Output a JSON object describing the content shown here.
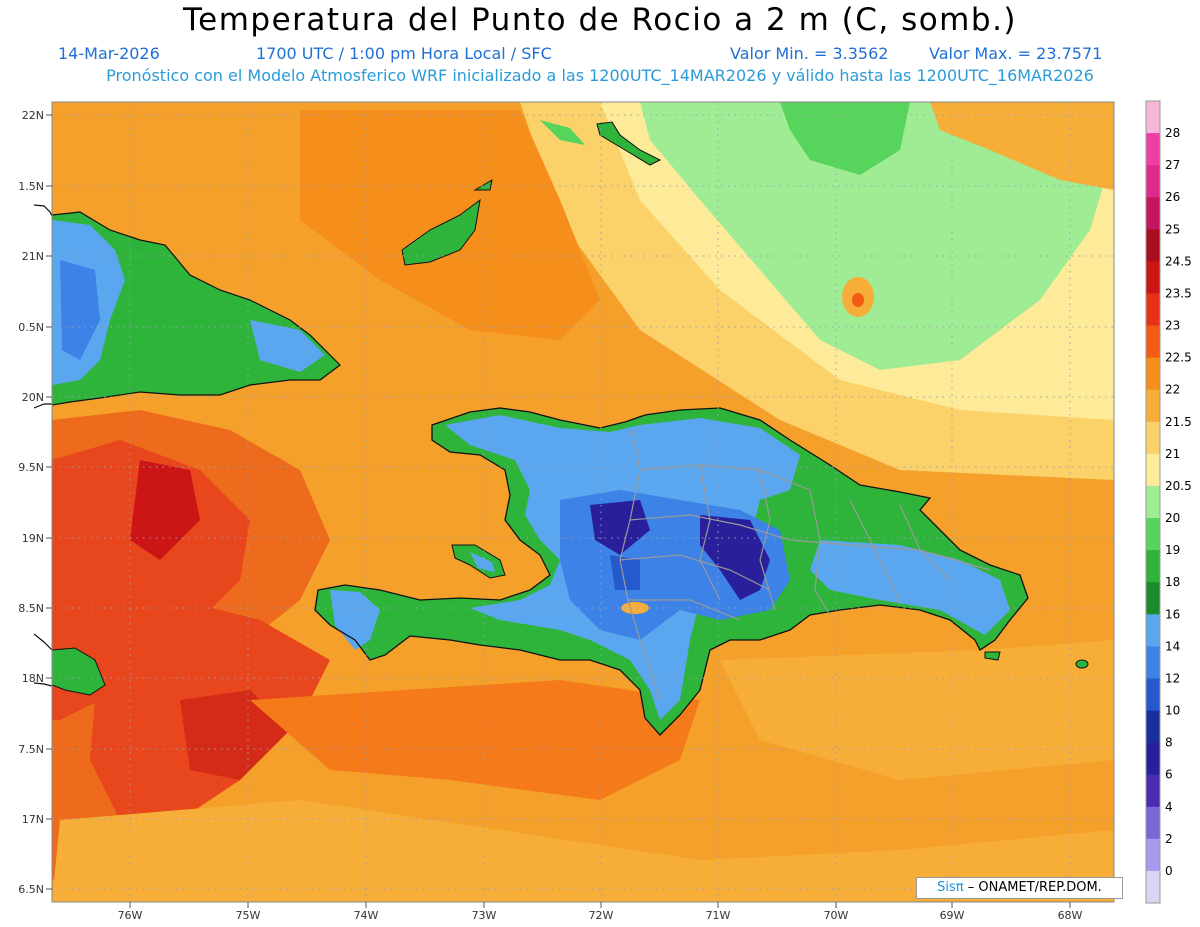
{
  "header": {
    "title": "Temperatura del Punto de Rocio a 2 m (C, somb.)",
    "date": "14-Mar-2026",
    "time": "1700 UTC / 1:00 pm Hora Local / SFC",
    "min": "Valor Min. = 3.3562",
    "max": "Valor Max. = 23.7571",
    "subtitle": "Pronóstico con el Modelo Atmosferico WRF inicializado a las 1200UTC_14MAR2026 y válido hasta las  1200UTC_16MAR2026"
  },
  "axes": {
    "lat_labels": [
      "22N",
      "1.5N",
      "21N",
      "0.5N",
      "20N",
      "9.5N",
      "19N",
      "8.5N",
      "18N",
      "7.5N",
      "17N",
      "6.5N"
    ],
    "lon_labels": [
      "76W",
      "75W",
      "74W",
      "73W",
      "72W",
      "71W",
      "70W",
      "69W",
      "68W"
    ]
  },
  "colorbar": {
    "levels": [
      "28",
      "27",
      "26",
      "25",
      "24.5",
      "23.5",
      "23",
      "22.5",
      "22",
      "21.5",
      "21",
      "20.5",
      "20",
      "19",
      "18",
      "16",
      "14",
      "12",
      "10",
      "8",
      "6",
      "4",
      "2",
      "0"
    ],
    "colors": [
      "#f5b6d9",
      "#ee3fa5",
      "#dd2a8c",
      "#c41561",
      "#a80e1e",
      "#cc1515",
      "#e83218",
      "#f45c14",
      "#f68e1c",
      "#f7ae38",
      "#fbd26a",
      "#fdeb9a",
      "#a0ec94",
      "#56d45b",
      "#2fb43b",
      "#1a8a2a",
      "#5aa7f0",
      "#3d82e6",
      "#2559cc",
      "#1a2f9e",
      "#27209a",
      "#4a2cb4",
      "#7d66d6",
      "#a99af0",
      "#d8d6f2"
    ]
  },
  "credit": {
    "brand": "Sisπ",
    "text": "– ONAMET/REP.DOM."
  },
  "colors": {
    "title_blue": "#1f6fd6",
    "subtitle_blue": "#2a9bd8",
    "sea_orange": "#f69a26",
    "sea_red": "#e8461c",
    "land_blue": "#5aa7f0",
    "land_green": "#2fb43b"
  }
}
